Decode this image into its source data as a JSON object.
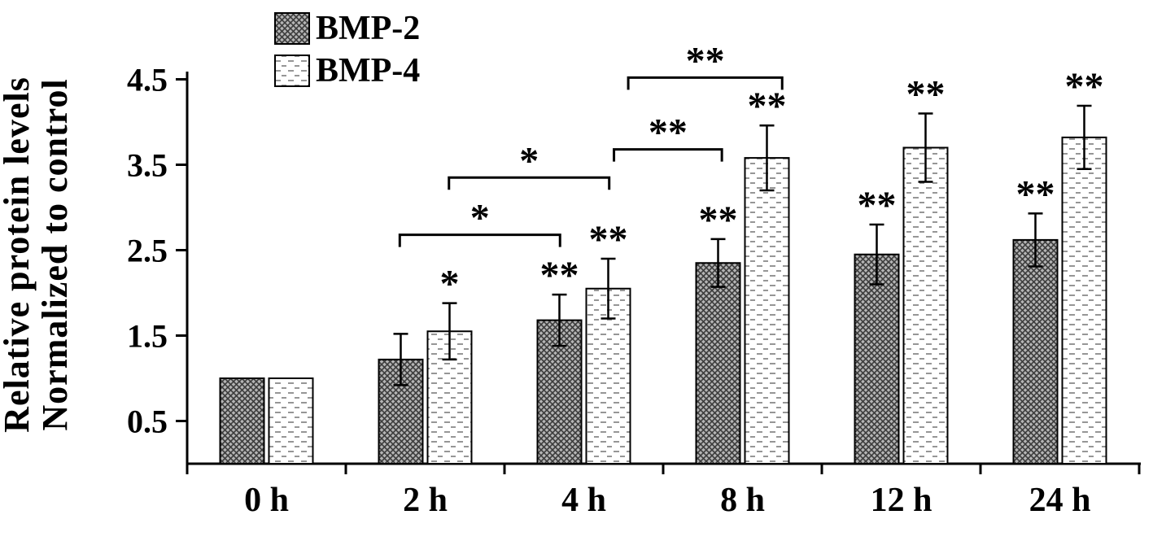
{
  "figure": {
    "ylabel_line1": "Relative protein levels",
    "ylabel_line2": "Normalized to control"
  },
  "chart_data": {
    "type": "bar",
    "title": "",
    "xlabel": "",
    "ylabel": "Relative protein levels Normalized to control",
    "categories": [
      "0 h",
      "2 h",
      "4 h",
      "8 h",
      "12 h",
      "24 h"
    ],
    "yticks": [
      "0.5",
      "1.5",
      "2.5",
      "3.5",
      "4.5"
    ],
    "ylim": [
      0,
      4.86
    ],
    "grid": false,
    "legend_position": "top-left",
    "series": [
      {
        "name": "BMP-2",
        "pattern": "dark-crosshatch",
        "values": [
          1.0,
          1.22,
          1.68,
          2.35,
          2.45,
          2.62
        ],
        "errors": [
          0,
          0.3,
          0.3,
          0.28,
          0.35,
          0.31
        ],
        "significance": [
          "",
          "",
          "**",
          "**",
          "**",
          "**"
        ]
      },
      {
        "name": "BMP-4",
        "pattern": "white-dash",
        "values": [
          1.0,
          1.55,
          2.05,
          3.58,
          3.7,
          3.82
        ],
        "errors": [
          0,
          0.33,
          0.35,
          0.38,
          0.4,
          0.37
        ],
        "significance": [
          "",
          "*",
          "**",
          "**",
          "**",
          "**"
        ]
      }
    ],
    "brackets": [
      {
        "x1": 1.34,
        "x2": 2.35,
        "y": 2.68,
        "label": "*"
      },
      {
        "x1": 1.65,
        "x2": 2.66,
        "y": 3.35,
        "label": "*"
      },
      {
        "x1": 2.69,
        "x2": 3.37,
        "y": 3.68,
        "label": "**"
      },
      {
        "x1": 2.78,
        "x2": 3.75,
        "y": 4.52,
        "label": "**"
      }
    ]
  },
  "legend": {
    "items": [
      {
        "label": "BMP-2",
        "swatch": "dark-crosshatch-swatch"
      },
      {
        "label": "BMP-4",
        "swatch": "white-dash-swatch"
      }
    ]
  }
}
